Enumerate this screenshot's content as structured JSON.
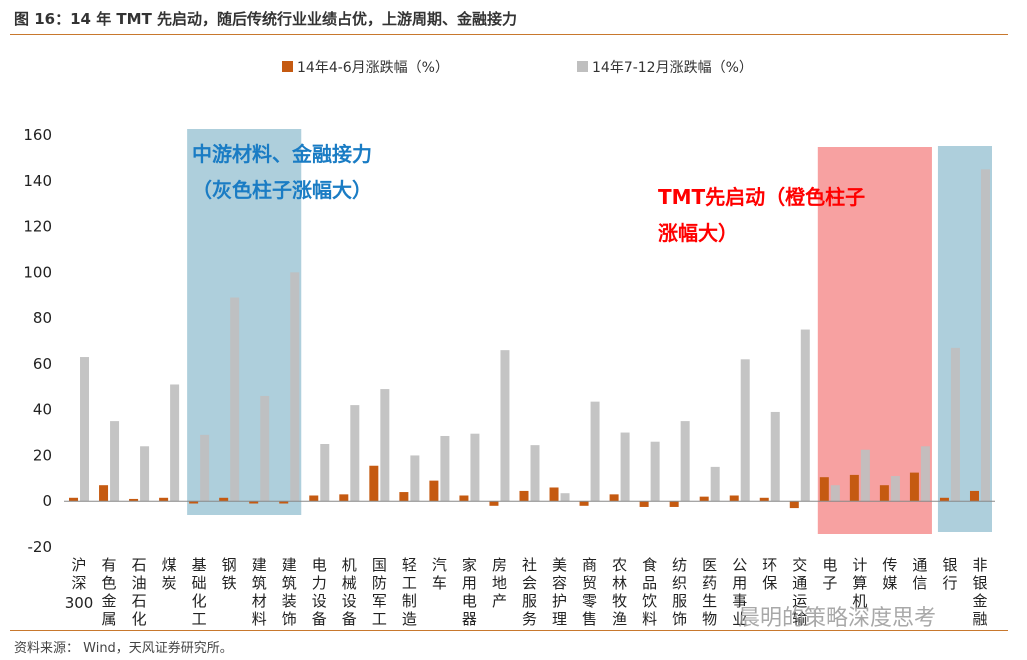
{
  "figure_title": "图 16：14 年 TMT 先启动，随后传统行业业绩占优，上游周期、金融接力",
  "source_note": "资料来源：  Wind，天风证券研究所。",
  "watermark": "晨明的策略深度思考",
  "colors": {
    "series1": "#c55a11",
    "series2": "#bfbfbf",
    "accent_rule": "#c8782d",
    "blue_box": "#aecfdc",
    "red_box": "#f7a1a1",
    "blue_text": "#1a7cc4",
    "red_text": "#ff0000"
  },
  "chart_data": {
    "type": "bar",
    "title": "",
    "xlabel": "",
    "ylabel": "",
    "ylim": [
      -20,
      160
    ],
    "yticks": [
      -20,
      0,
      20,
      40,
      60,
      80,
      100,
      120,
      140,
      160
    ],
    "grid": false,
    "legend_position": "top",
    "categories": [
      "沪深300",
      "有色金属",
      "石油石化",
      "煤炭",
      "基础化工",
      "钢铁",
      "建筑材料",
      "建筑装饰",
      "电力设备",
      "机械设备",
      "国防军工",
      "轻工制造",
      "汽车",
      "家用电器",
      "房地产",
      "社会服务",
      "美容护理",
      "商贸零售",
      "农林牧渔",
      "食品饮料",
      "纺织服饰",
      "医药生物",
      "公用事业",
      "环保",
      "交通运输",
      "电子",
      "计算机",
      "传媒",
      "通信",
      "银行",
      "非银金融"
    ],
    "series": [
      {
        "name": "14年4-6月涨跌幅（%）",
        "values": [
          1.5,
          7,
          1,
          1.5,
          -1,
          1.5,
          -1,
          -1,
          2.5,
          3,
          15.5,
          4,
          9,
          2.5,
          -2,
          4.5,
          6,
          -2,
          3,
          -2.5,
          -2.5,
          2,
          2.5,
          1.5,
          -3,
          10.5,
          11.5,
          7,
          12.5,
          1.5,
          4.5
        ]
      },
      {
        "name": "14年7-12月涨跌幅（%）",
        "values": [
          63,
          35,
          24,
          51,
          29,
          89,
          46,
          100,
          25,
          42,
          49,
          20,
          28.5,
          29.5,
          66,
          24.5,
          3.5,
          43.5,
          30,
          26,
          35,
          15,
          62,
          39,
          75,
          7,
          22.5,
          11,
          24,
          67,
          145
        ]
      }
    ],
    "annotations": [
      {
        "lines": [
          "中游材料、金融接力",
          "（灰色柱子涨幅大）"
        ],
        "highlight": [
          "基础化工",
          "建筑装饰"
        ],
        "color": "blue"
      },
      {
        "lines": [
          "TMT先启动（橙色柱子",
          "涨幅大）"
        ],
        "highlight": [
          "电子",
          "通信"
        ],
        "color": "red"
      },
      {
        "lines": [],
        "highlight": [
          "银行",
          "非银金融"
        ],
        "color": "blue"
      }
    ]
  }
}
